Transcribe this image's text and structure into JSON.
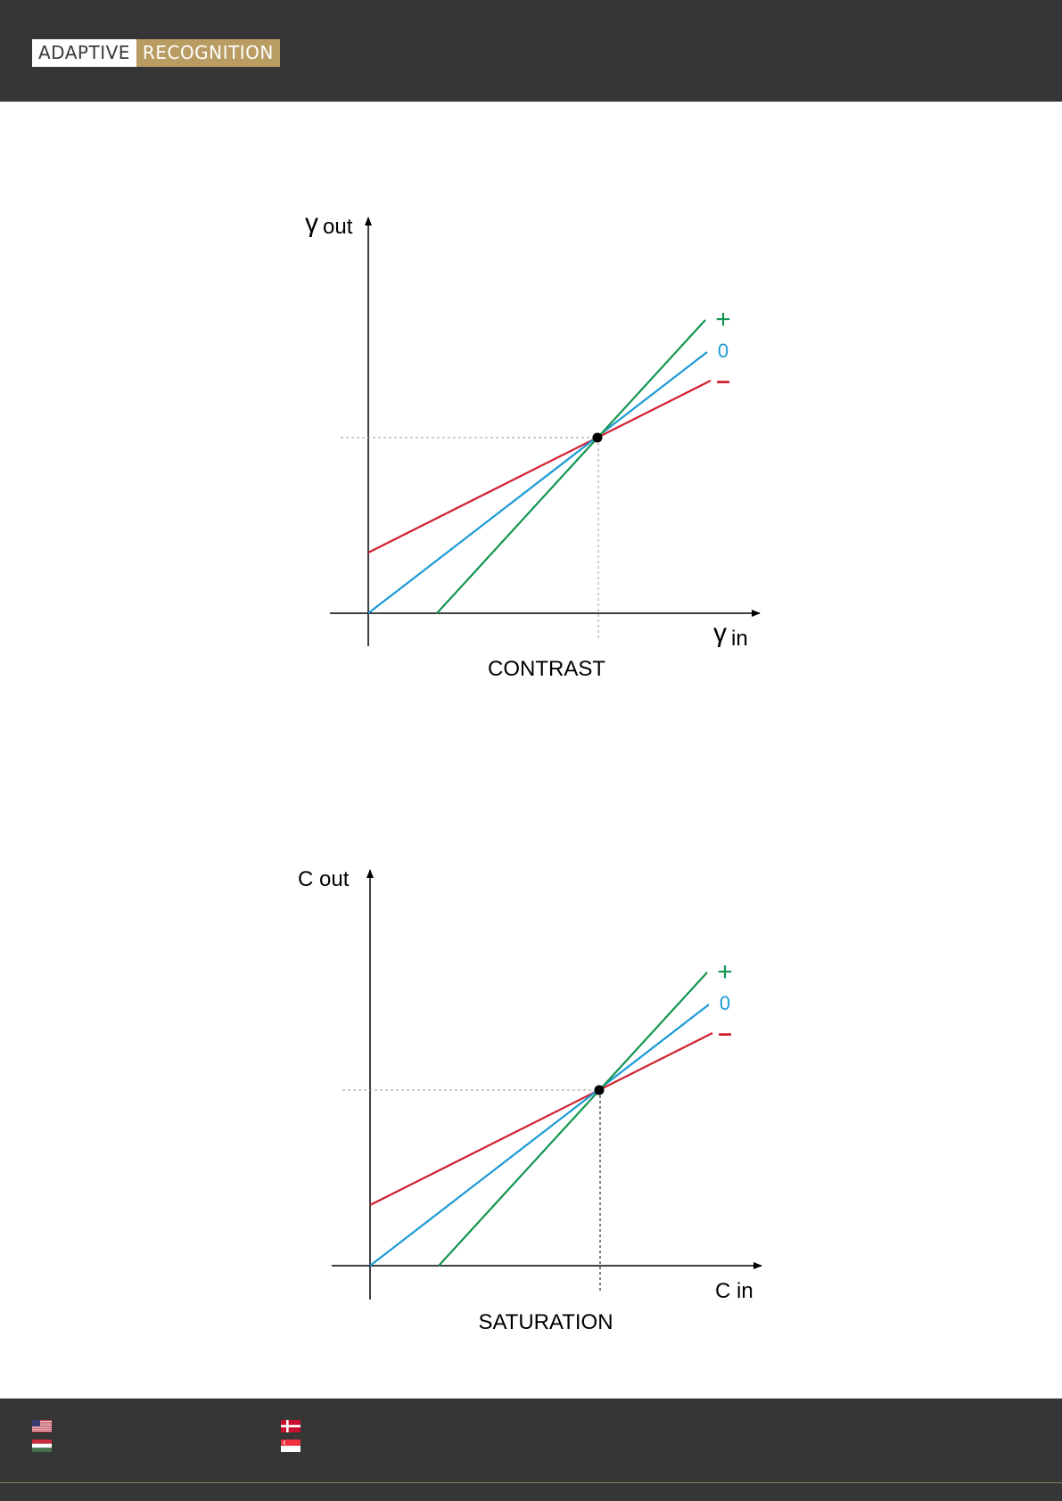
{
  "header": {
    "logo_left": "ADAPTIVE",
    "logo_right": "RECOGNITION"
  },
  "colors": {
    "header_bg": "#363636",
    "logo_gold": "#b99c62",
    "plus_line": "#129650",
    "zero_line": "#1b9ad6",
    "minus_line": "#d21f2e"
  },
  "diagrams": [
    {
      "y_label_symbol": "γ",
      "y_label": "out",
      "x_label_symbol": "γ",
      "x_label": "in",
      "caption": "CONTRAST",
      "legend": {
        "plus": "+",
        "zero": "0",
        "minus": "–"
      }
    },
    {
      "y_label_symbol": "",
      "y_label": "C out",
      "x_label_symbol": "",
      "x_label": "C in",
      "caption": "SATURATION",
      "legend": {
        "plus": "+",
        "zero": "0",
        "minus": "–"
      }
    }
  ],
  "footer": {
    "flags": [
      "us-flag-icon",
      "hungary-flag-icon",
      "denmark-flag-icon",
      "singapore-flag-icon"
    ]
  }
}
